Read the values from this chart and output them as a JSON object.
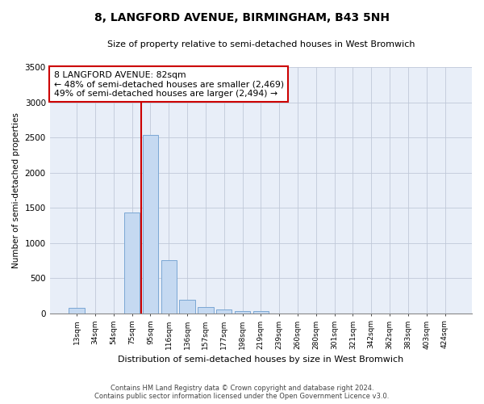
{
  "title": "8, LANGFORD AVENUE, BIRMINGHAM, B43 5NH",
  "subtitle": "Size of property relative to semi-detached houses in West Bromwich",
  "xlabel": "Distribution of semi-detached houses by size in West Bromwich",
  "ylabel": "Number of semi-detached properties",
  "categories": [
    "13sqm",
    "34sqm",
    "54sqm",
    "75sqm",
    "95sqm",
    "116sqm",
    "136sqm",
    "157sqm",
    "177sqm",
    "198sqm",
    "219sqm",
    "239sqm",
    "260sqm",
    "280sqm",
    "301sqm",
    "321sqm",
    "342sqm",
    "362sqm",
    "383sqm",
    "403sqm",
    "424sqm"
  ],
  "values": [
    80,
    0,
    0,
    1430,
    2540,
    750,
    195,
    85,
    50,
    35,
    30,
    0,
    0,
    0,
    0,
    0,
    0,
    0,
    0,
    0,
    0
  ],
  "bar_color": "#c5d9f1",
  "bar_edge_color": "#7ba7d4",
  "vline_x": 3.5,
  "vline_color": "#cc0000",
  "property_line_label": "8 LANGFORD AVENUE: 82sqm",
  "annotation_line1": "← 48% of semi-detached houses are smaller (2,469)",
  "annotation_line2": "49% of semi-detached houses are larger (2,494) →",
  "annotation_box_facecolor": "#ffffff",
  "annotation_box_edgecolor": "#cc0000",
  "ylim": [
    0,
    3500
  ],
  "yticks": [
    0,
    500,
    1000,
    1500,
    2000,
    2500,
    3000,
    3500
  ],
  "bg_color": "#e8eef8",
  "title_fontsize": 10,
  "subtitle_fontsize": 8,
  "footer_line1": "Contains HM Land Registry data © Crown copyright and database right 2024.",
  "footer_line2": "Contains public sector information licensed under the Open Government Licence v3.0."
}
